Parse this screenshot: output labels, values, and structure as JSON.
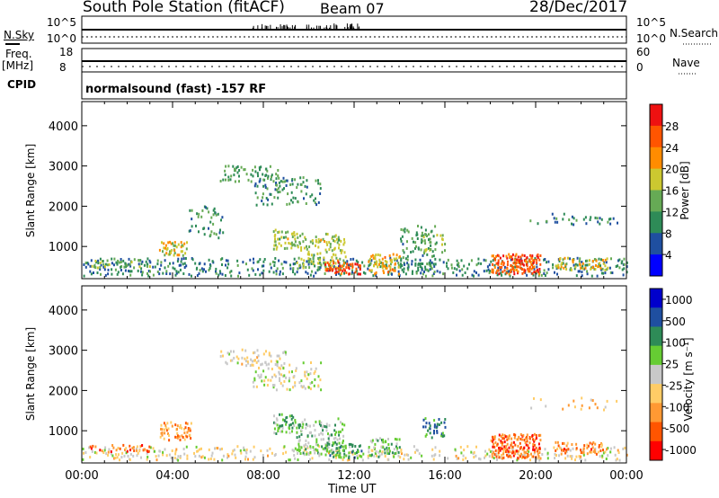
{
  "header": {
    "station": "South Pole Station (fitACF)",
    "beam": "Beam 07",
    "date": "28/Dec/2017"
  },
  "sky_panel": {
    "left_label": "N.Sky",
    "left_ticks": [
      "10^5",
      "10^0"
    ],
    "right_label": "N.Search",
    "right_ticks": [
      "10^5",
      "10^0"
    ]
  },
  "freq_panel": {
    "left_label_line1": "Freq.",
    "left_label_line2": "[MHz]",
    "left_ticks": [
      "18",
      "8"
    ],
    "right_label": "Nave",
    "right_ticks": [
      "60",
      "0"
    ]
  },
  "cpid": {
    "label": "CPID",
    "value": "normalsound (fast) -157 RF"
  },
  "colors": {
    "power_scale": [
      "#0000ff",
      "#1f4fa0",
      "#2e8b57",
      "#66aa55",
      "#ccc830",
      "#ff8c00",
      "#ff5500",
      "#ee1111"
    ],
    "velocity_scale": [
      "#ff0000",
      "#ff5500",
      "#ff9933",
      "#ffcc66",
      "#c8c8c8",
      "#66cc33",
      "#2e8b57",
      "#1f4fa0",
      "#0000cc"
    ]
  },
  "chart_data": [
    {
      "type": "heatmap",
      "title": "Power",
      "ylabel": "Slant Range [km]",
      "yticks": [
        "1000",
        "2000",
        "3000",
        "4000"
      ],
      "ylim": [
        200,
        4600
      ],
      "xlim": [
        0,
        24
      ],
      "colorbar_label": "Power [dB]",
      "colorbar_ticks": [
        "4",
        "8",
        "12",
        "16",
        "20",
        "24",
        "28"
      ],
      "colorbar_range": [
        0,
        32
      ],
      "regions": [
        {
          "t0": 0.0,
          "t1": 24.0,
          "r0": 250,
          "r1": 700,
          "level": 0.25,
          "density": 0.35
        },
        {
          "t0": 0.4,
          "t1": 3.0,
          "r0": 450,
          "r1": 650,
          "level": 0.45,
          "density": 0.5
        },
        {
          "t0": 3.4,
          "t1": 4.6,
          "r0": 750,
          "r1": 1100,
          "level": 0.55,
          "density": 0.6
        },
        {
          "t0": 4.6,
          "t1": 6.2,
          "r0": 1200,
          "r1": 2000,
          "level": 0.3,
          "density": 0.25
        },
        {
          "t0": 6.0,
          "t1": 8.8,
          "r0": 2600,
          "r1": 3000,
          "level": 0.35,
          "density": 0.4
        },
        {
          "t0": 7.5,
          "t1": 10.5,
          "r0": 2000,
          "r1": 2700,
          "level": 0.3,
          "density": 0.3
        },
        {
          "t0": 8.4,
          "t1": 9.4,
          "r0": 900,
          "r1": 1400,
          "level": 0.5,
          "density": 0.5
        },
        {
          "t0": 9.4,
          "t1": 11.6,
          "r0": 400,
          "r1": 1300,
          "level": 0.5,
          "density": 0.45
        },
        {
          "t0": 10.6,
          "t1": 12.3,
          "r0": 300,
          "r1": 600,
          "level": 0.9,
          "density": 0.75
        },
        {
          "t0": 12.6,
          "t1": 14.0,
          "r0": 300,
          "r1": 800,
          "level": 0.65,
          "density": 0.55
        },
        {
          "t0": 14.0,
          "t1": 15.6,
          "r0": 300,
          "r1": 1500,
          "level": 0.35,
          "density": 0.3
        },
        {
          "t0": 15.0,
          "t1": 16.0,
          "r0": 800,
          "r1": 1300,
          "level": 0.45,
          "density": 0.45
        },
        {
          "t0": 18.0,
          "t1": 20.2,
          "r0": 300,
          "r1": 800,
          "level": 0.85,
          "density": 0.75
        },
        {
          "t0": 20.8,
          "t1": 23.2,
          "r0": 400,
          "r1": 700,
          "level": 0.6,
          "density": 0.6
        },
        {
          "t0": 19.5,
          "t1": 23.6,
          "r0": 1500,
          "r1": 1800,
          "level": 0.25,
          "density": 0.2
        }
      ]
    },
    {
      "type": "heatmap",
      "title": "Velocity",
      "ylabel": "Slant Range [km]",
      "yticks": [
        "1000",
        "2000",
        "3000",
        "4000"
      ],
      "ylim": [
        200,
        4600
      ],
      "xlim": [
        0,
        24
      ],
      "xlabel": "Time UT",
      "xticks": [
        "00:00",
        "04:00",
        "08:00",
        "12:00",
        "16:00",
        "20:00",
        "00:00"
      ],
      "colorbar_label": "Velocity [m s⁻¹]",
      "colorbar_ticks": [
        "1000",
        "500",
        "100",
        "25",
        "-25",
        "-100",
        "-500",
        "-1000"
      ],
      "regions": [
        {
          "t0": 0.0,
          "t1": 24.0,
          "r0": 250,
          "r1": 600,
          "level": 0.45,
          "density": 0.3
        },
        {
          "t0": 0.3,
          "t1": 3.0,
          "r0": 450,
          "r1": 650,
          "level": 0.2,
          "density": 0.55
        },
        {
          "t0": 3.4,
          "t1": 4.8,
          "r0": 750,
          "r1": 1200,
          "level": 0.25,
          "density": 0.55
        },
        {
          "t0": 6.0,
          "t1": 9.0,
          "r0": 2600,
          "r1": 3000,
          "level": 0.45,
          "density": 0.4
        },
        {
          "t0": 7.5,
          "t1": 10.5,
          "r0": 2000,
          "r1": 2700,
          "level": 0.48,
          "density": 0.3
        },
        {
          "t0": 8.4,
          "t1": 9.4,
          "r0": 900,
          "r1": 1400,
          "level": 0.62,
          "density": 0.5
        },
        {
          "t0": 9.4,
          "t1": 11.6,
          "r0": 400,
          "r1": 1300,
          "level": 0.6,
          "density": 0.45
        },
        {
          "t0": 10.6,
          "t1": 12.3,
          "r0": 300,
          "r1": 700,
          "level": 0.7,
          "density": 0.7
        },
        {
          "t0": 12.6,
          "t1": 14.0,
          "r0": 300,
          "r1": 800,
          "level": 0.62,
          "density": 0.55
        },
        {
          "t0": 15.0,
          "t1": 16.0,
          "r0": 800,
          "r1": 1300,
          "level": 0.78,
          "density": 0.45
        },
        {
          "t0": 18.0,
          "t1": 20.2,
          "r0": 300,
          "r1": 900,
          "level": 0.15,
          "density": 0.75
        },
        {
          "t0": 20.8,
          "t1": 23.2,
          "r0": 400,
          "r1": 700,
          "level": 0.18,
          "density": 0.6
        },
        {
          "t0": 19.5,
          "t1": 23.6,
          "r0": 1500,
          "r1": 1800,
          "level": 0.35,
          "density": 0.2
        }
      ]
    }
  ]
}
